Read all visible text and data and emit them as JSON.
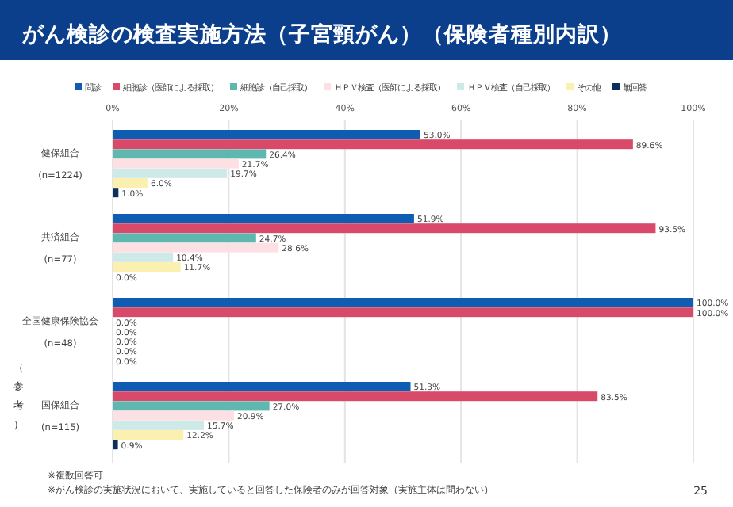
{
  "chart_data": {
    "type": "bar",
    "orientation": "horizontal",
    "title": "がん検診の検査実施方法（子宮頸がん）（保険者種別内訳）",
    "categories": [
      "健保組合 (n=1224)",
      "共済組合 (n=77)",
      "全国健康保険協会 (n=48)",
      "国保組合 (n=115)"
    ],
    "series": [
      {
        "name": "問診",
        "color": "#0f5db3",
        "values": [
          53.0,
          51.9,
          100.0,
          51.3
        ],
        "value_labels": [
          "53.0%",
          "51.9%",
          "100.0%",
          "51.3%"
        ]
      },
      {
        "name": "細胞診（医師による採取）",
        "color": "#d94a6a",
        "values": [
          89.6,
          93.5,
          100.0,
          83.5
        ],
        "value_labels": [
          "89.6%",
          "93.5%",
          "100.0%",
          "83.5%"
        ]
      },
      {
        "name": "細胞診（自己採取）",
        "color": "#5fb8b0",
        "values": [
          26.4,
          24.7,
          0.0,
          27.0
        ],
        "value_labels": [
          "26.4%",
          "24.7%",
          "0.0%",
          "27.0%"
        ]
      },
      {
        "name": "ＨＰＶ検査（医師による採取）",
        "color": "#fde0e4",
        "values": [
          21.7,
          28.6,
          0.0,
          20.9
        ],
        "value_labels": [
          "21.7%",
          "28.6%",
          "0.0%",
          "20.9%"
        ]
      },
      {
        "name": "ＨＰＶ検査（自己採取）",
        "color": "#cde9e8",
        "values": [
          19.7,
          10.4,
          0.0,
          15.7
        ],
        "value_labels": [
          "19.7%",
          "10.4%",
          "0.0%",
          "15.7%"
        ]
      },
      {
        "name": "その他",
        "color": "#fbf0b0",
        "values": [
          6.0,
          11.7,
          0.0,
          12.2
        ],
        "value_labels": [
          "6.0%",
          "11.7%",
          "0.0%",
          "12.2%"
        ]
      },
      {
        "name": "無回答",
        "color": "#0d2f5e",
        "values": [
          1.0,
          0.0,
          0.0,
          0.9
        ],
        "value_labels": [
          "1.0%",
          "0.0%",
          "0.0%",
          "0.9%"
        ]
      }
    ],
    "xlim": [
      0,
      100
    ],
    "xticks": [
      {
        "value": 0,
        "label": "0%"
      },
      {
        "value": 20,
        "label": "20%"
      },
      {
        "value": 40,
        "label": "40%"
      },
      {
        "value": 60,
        "label": "60%"
      },
      {
        "value": 80,
        "label": "80%"
      },
      {
        "value": 100,
        "label": "100%"
      }
    ],
    "grid": "x",
    "legend": "top",
    "annotations": [
      "（参考）",
      "※複数回答可",
      "※がん検診の実施状況において、実施していると回答した保険者のみが回答対象（実施主体は問わない）",
      "25"
    ]
  }
}
